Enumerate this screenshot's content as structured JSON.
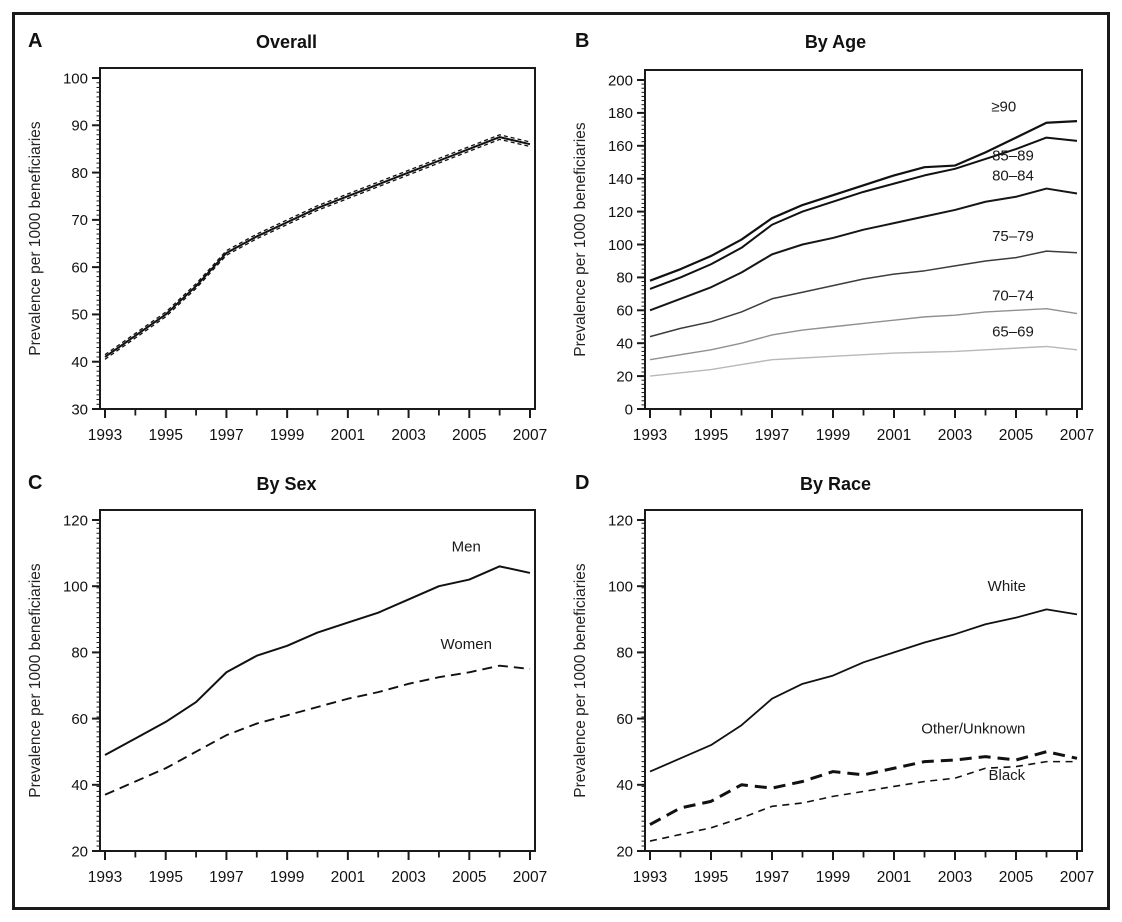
{
  "figure": {
    "border_color": "#1a1a1a",
    "background": "#ffffff",
    "text_color": "#111111",
    "years_start": 1993,
    "years_end": 2007
  },
  "chart_data": [
    {
      "type": "line",
      "panel_letter": "A",
      "title": "Overall",
      "xlabel": "",
      "ylabel": "Prevalence per 1000 beneficiaries",
      "x": [
        1993,
        1994,
        1995,
        1996,
        1997,
        1998,
        1999,
        2000,
        2001,
        2002,
        2003,
        2004,
        2005,
        2006,
        2007
      ],
      "xtick_labels": [
        1993,
        1995,
        1997,
        1999,
        2001,
        2003,
        2005,
        2007
      ],
      "ylim": [
        30,
        100
      ],
      "yticks": [
        30,
        40,
        50,
        60,
        70,
        80,
        90,
        100
      ],
      "ytick_minor_step": 1,
      "grid": false,
      "series": [
        {
          "name": "Overall",
          "color": "#111111",
          "width": 2,
          "line_style": "solid",
          "ci": true,
          "values": [
            41,
            45.5,
            50,
            56,
            63,
            66.5,
            69.5,
            72.5,
            75,
            77.5,
            80,
            82.5,
            85,
            87.5,
            86
          ]
        }
      ]
    },
    {
      "type": "line",
      "panel_letter": "B",
      "title": "By Age",
      "xlabel": "",
      "ylabel": "Prevalence per 1000 beneficiaries",
      "x": [
        1993,
        1994,
        1995,
        1996,
        1997,
        1998,
        1999,
        2000,
        2001,
        2002,
        2003,
        2004,
        2005,
        2006,
        2007
      ],
      "xtick_labels": [
        1993,
        1995,
        1997,
        1999,
        2001,
        2003,
        2005,
        2007
      ],
      "ylim": [
        0,
        200
      ],
      "yticks": [
        0,
        20,
        40,
        60,
        80,
        100,
        120,
        140,
        160,
        180,
        200
      ],
      "ytick_minor_step": 2.5,
      "grid": false,
      "series": [
        {
          "name": "≥90",
          "color": "#111111",
          "width": 2.2,
          "line_style": "solid",
          "values": [
            78,
            85,
            93,
            103,
            116,
            124,
            130,
            136,
            142,
            147,
            148,
            156,
            165,
            174,
            175
          ],
          "label": {
            "x": 2004.6,
            "y": 181
          }
        },
        {
          "name": "85–89",
          "color": "#111111",
          "width": 2,
          "line_style": "solid",
          "values": [
            73,
            80,
            88,
            98,
            112,
            120,
            126,
            132,
            137,
            142,
            146,
            152,
            158,
            165,
            163
          ],
          "label": {
            "x": 2004.9,
            "y": 151
          }
        },
        {
          "name": "80–84",
          "color": "#161616",
          "width": 2,
          "line_style": "solid",
          "values": [
            60,
            67,
            74,
            83,
            94,
            100,
            104,
            109,
            113,
            117,
            121,
            126,
            129,
            134,
            131
          ],
          "label": {
            "x": 2004.9,
            "y": 139
          }
        },
        {
          "name": "75–79",
          "color": "#3c3c3c",
          "width": 1.5,
          "line_style": "solid",
          "values": [
            44,
            49,
            53,
            59,
            67,
            71,
            75,
            79,
            82,
            84,
            87,
            90,
            92,
            96,
            95
          ],
          "label": {
            "x": 2004.9,
            "y": 102
          }
        },
        {
          "name": "70–74",
          "color": "#909090",
          "width": 1.4,
          "line_style": "solid",
          "values": [
            30,
            33,
            36,
            40,
            45,
            48,
            50,
            52,
            54,
            56,
            57,
            59,
            60,
            61,
            58
          ],
          "label": {
            "x": 2004.9,
            "y": 66
          }
        },
        {
          "name": "65–69",
          "color": "#b8b8b8",
          "width": 1.4,
          "line_style": "solid",
          "values": [
            20,
            22,
            24,
            27,
            30,
            31,
            32,
            33,
            34,
            34.5,
            35,
            36,
            37,
            38,
            36
          ],
          "label": {
            "x": 2004.9,
            "y": 44
          }
        }
      ]
    },
    {
      "type": "line",
      "panel_letter": "C",
      "title": "By Sex",
      "xlabel": "",
      "ylabel": "Prevalence per 1000 beneficiaries",
      "x": [
        1993,
        1994,
        1995,
        1996,
        1997,
        1998,
        1999,
        2000,
        2001,
        2002,
        2003,
        2004,
        2005,
        2006,
        2007
      ],
      "xtick_labels": [
        1993,
        1995,
        1997,
        1999,
        2001,
        2003,
        2005,
        2007
      ],
      "ylim": [
        20,
        120
      ],
      "yticks": [
        20,
        40,
        60,
        80,
        100,
        120
      ],
      "ytick_minor_step": 1.5,
      "grid": false,
      "series": [
        {
          "name": "Men",
          "color": "#111111",
          "width": 2,
          "line_style": "solid",
          "values": [
            49,
            54,
            59,
            65,
            74,
            79,
            82,
            86,
            89,
            92,
            96,
            100,
            102,
            106,
            104
          ],
          "label": {
            "x": 2004.9,
            "y": 110.5
          }
        },
        {
          "name": "Women",
          "color": "#111111",
          "width": 1.9,
          "line_style": "dashed",
          "values": [
            37,
            41,
            45,
            50,
            55,
            58.5,
            61,
            63.5,
            66,
            68,
            70.5,
            72.5,
            74,
            76,
            75
          ],
          "label": {
            "x": 2004.9,
            "y": 81
          }
        }
      ]
    },
    {
      "type": "line",
      "panel_letter": "D",
      "title": "By Race",
      "xlabel": "",
      "ylabel": "Prevalence per 1000 beneficiaries",
      "x": [
        1993,
        1994,
        1995,
        1996,
        1997,
        1998,
        1999,
        2000,
        2001,
        2002,
        2003,
        2004,
        2005,
        2006,
        2007
      ],
      "xtick_labels": [
        1993,
        1995,
        1997,
        1999,
        2001,
        2003,
        2005,
        2007
      ],
      "ylim": [
        20,
        120
      ],
      "yticks": [
        20,
        40,
        60,
        80,
        100,
        120
      ],
      "ytick_minor_step": 1.5,
      "grid": false,
      "series": [
        {
          "name": "White",
          "color": "#111111",
          "width": 1.8,
          "line_style": "solid",
          "values": [
            44,
            48,
            52,
            58,
            66,
            70.5,
            73,
            77,
            80,
            83,
            85.5,
            88.5,
            90.5,
            93,
            91.5
          ],
          "label": {
            "x": 2004.7,
            "y": 98.5
          }
        },
        {
          "name": "Other/Unknown",
          "color": "#111111",
          "width": 3,
          "line_style": "dashed_bold",
          "values": [
            28,
            33,
            35,
            40,
            39,
            41,
            44,
            43,
            45,
            47,
            47.5,
            48.5,
            47.5,
            50,
            48
          ],
          "label": {
            "x": 2003.6,
            "y": 55.5
          }
        },
        {
          "name": "Black",
          "color": "#111111",
          "width": 1.6,
          "line_style": "dashed_short",
          "values": [
            23,
            25,
            27,
            30,
            33.5,
            34.5,
            36.5,
            38,
            39.5,
            41,
            42,
            45,
            45.5,
            47,
            47
          ],
          "label": {
            "x": 2004.7,
            "y": 41.5
          }
        }
      ]
    }
  ]
}
